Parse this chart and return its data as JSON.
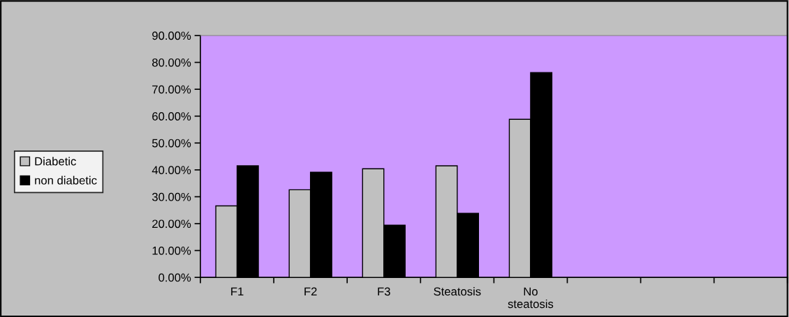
{
  "chart_data": {
    "type": "bar",
    "categories": [
      "F1",
      "F2",
      "F3",
      "Steatosis",
      "No\nsteatosis",
      null,
      null,
      null
    ],
    "series": [
      {
        "name": "Diabetic",
        "color": "#c0c0c0",
        "values": [
          26.6,
          32.6,
          40.4,
          41.5,
          58.8,
          null,
          null,
          null
        ]
      },
      {
        "name": "non diabetic",
        "color": "#000000",
        "values": [
          41.5,
          39.1,
          19.4,
          23.8,
          76.2,
          null,
          null,
          null
        ]
      }
    ],
    "ylim": [
      0,
      90
    ],
    "yticks": [
      {
        "value": 0,
        "label": "0.00%"
      },
      {
        "value": 10,
        "label": "10.00%"
      },
      {
        "value": 20,
        "label": "20.00%"
      },
      {
        "value": 30,
        "label": "30.00%"
      },
      {
        "value": 40,
        "label": "40.00%"
      },
      {
        "value": 50,
        "label": "50.00%"
      },
      {
        "value": 60,
        "label": "60.00%"
      },
      {
        "value": 70,
        "label": "70.00%"
      },
      {
        "value": 80,
        "label": "80.00%"
      },
      {
        "value": 90,
        "label": "90.00%"
      }
    ],
    "grid": false,
    "legend": "left"
  }
}
